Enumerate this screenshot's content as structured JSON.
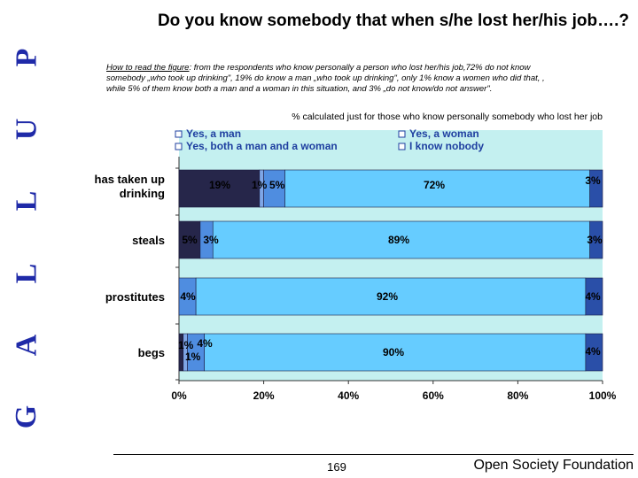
{
  "brand": {
    "letters": [
      "G",
      "A",
      "L",
      "L",
      "U",
      "P"
    ]
  },
  "title": "Do you know somebody that when s/he lost her/his job….?",
  "howto": {
    "label": "How to read the figure",
    "text": ": from the respondents who know personally a person who lost her/his job,72% do not know somebody „who took up drinking\", 19% do know a man „who took up drinking\", only 1% know a women who did that, , while 5% of them know both a man and a woman in this situation, and 3% „do not know/do not answer\"."
  },
  "note": "% calculated just for those who know personally  somebody who lost  her job",
  "footer": {
    "page": "169",
    "org": "Open Society Foundation"
  },
  "colors": {
    "yes_man": "#26264a",
    "yes_woman": "#7fa6e6",
    "both": "#4f8de0",
    "nobody": "#66ccff",
    "dkna": "#2a4fa8",
    "plot_bg": "#c4f0f0"
  },
  "chart_data": {
    "type": "bar",
    "orientation": "horizontal",
    "stacked": true,
    "xlim": [
      0,
      100
    ],
    "x_ticks": [
      "0%",
      "20%",
      "40%",
      "60%",
      "80%",
      "100%"
    ],
    "categories": [
      "has taken up drinking",
      "steals",
      "prostitutes",
      "begs"
    ],
    "legend": {
      "placement": "top",
      "entries": [
        "Yes, a man",
        "Yes, a woman",
        "Yes, both a man and a woman",
        "I know nobody"
      ]
    },
    "series": [
      {
        "name": "Yes, a man",
        "color_key": "yes_man",
        "values": [
          19,
          5,
          0,
          1
        ]
      },
      {
        "name": "Yes, a woman",
        "color_key": "yes_woman",
        "values": [
          1,
          0,
          0,
          1
        ]
      },
      {
        "name": "Yes, both a man and a woman",
        "color_key": "both",
        "values": [
          5,
          3,
          4,
          4
        ]
      },
      {
        "name": "I know nobody",
        "color_key": "nobody",
        "values": [
          72,
          89,
          92,
          90
        ]
      },
      {
        "color_key": "dkna",
        "values": [
          3,
          3,
          4,
          4
        ]
      }
    ],
    "data_labels": [
      [
        "19%",
        "1%",
        "5%",
        "72%",
        "3%"
      ],
      [
        "5%",
        "",
        "3%",
        "89%",
        "3%"
      ],
      [
        "",
        "",
        "4%",
        "92%",
        "4%"
      ],
      [
        "1%",
        "1%",
        "4%",
        "90%",
        "4%"
      ]
    ]
  }
}
